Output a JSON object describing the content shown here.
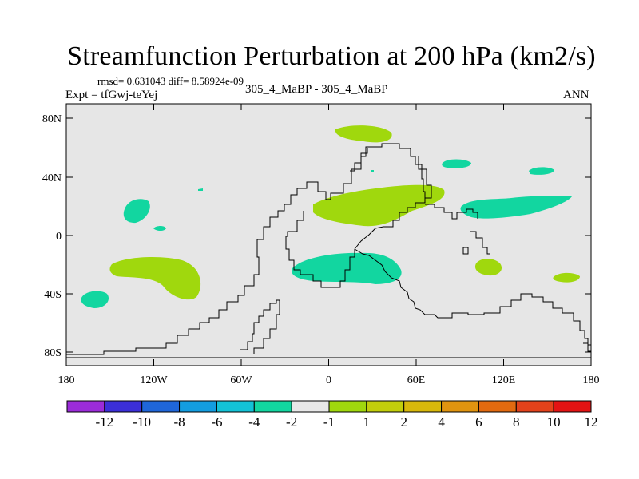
{
  "title": "Streamfunction Perturbation at 200 hPa (km2/s)",
  "stats_line": "rmsd= 0.631043 diff= 8.58924e-09",
  "expt_label": "Expt = tfGwj-teYej",
  "run_label": "305_4_MaBP - 305_4_MaBP",
  "period": "ANN",
  "map": {
    "background": "#e6e6e6",
    "lat_ticks": [
      "80N",
      "40N",
      "0",
      "40S",
      "80S"
    ],
    "lon_ticks": [
      "180",
      "120W",
      "60W",
      "0",
      "60E",
      "120E",
      "180"
    ]
  },
  "colorbar": {
    "colors": [
      "#9b2bd9",
      "#3b2fd8",
      "#1f66d9",
      "#139de0",
      "#13c2d6",
      "#12d6a0",
      "#e8e8e8",
      "#a0d80d",
      "#c2ce0b",
      "#d8b80b",
      "#e09410",
      "#e26a10",
      "#e3421b",
      "#e31313"
    ],
    "labels": [
      "-12",
      "-10",
      "-8",
      "-6",
      "-4",
      "-2",
      "-1",
      "1",
      "2",
      "4",
      "6",
      "8",
      "10",
      "12"
    ]
  }
}
